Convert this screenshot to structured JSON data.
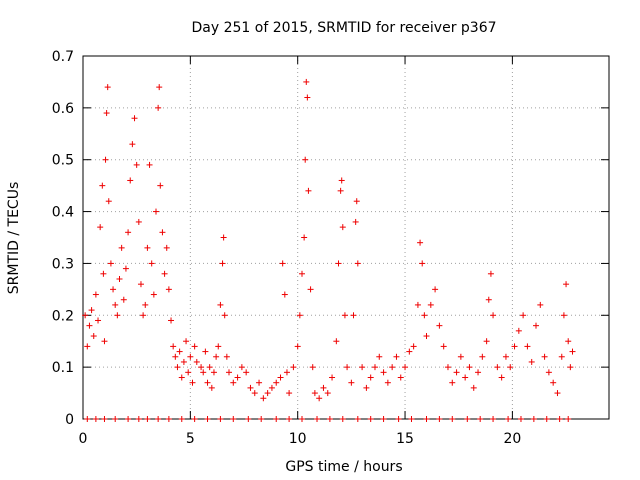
{
  "chart_data": {
    "type": "scatter",
    "title": "Day 251 of 2015, SRMTID for receiver p367",
    "xlabel": "GPS time / hours",
    "ylabel": "SRMTID / TECUs",
    "xlim": [
      0,
      24.5
    ],
    "ylim": [
      0,
      0.7
    ],
    "xticks": [
      0,
      5,
      10,
      15,
      20
    ],
    "yticks": [
      0,
      0.1,
      0.2,
      0.3,
      0.4,
      0.5,
      0.6,
      0.7
    ],
    "xtick_labels": [
      "0",
      "5",
      "10",
      "15",
      "20"
    ],
    "ytick_labels": [
      "0",
      "0.1",
      "0.2",
      "0.3",
      "0.4",
      "0.5",
      "0.6",
      "0.7"
    ],
    "grid": true,
    "marker": "plus",
    "series": [
      {
        "name": "SRMTID",
        "color": "#ee0000",
        "points": [
          [
            0.1,
            0.2
          ],
          [
            0.2,
            0.14
          ],
          [
            0.3,
            0.18
          ],
          [
            0.4,
            0.21
          ],
          [
            0.5,
            0.16
          ],
          [
            0.6,
            0.24
          ],
          [
            0.7,
            0.19
          ],
          [
            0.8,
            0.37
          ],
          [
            0.9,
            0.45
          ],
          [
            0.95,
            0.28
          ],
          [
            1.0,
            0.15
          ],
          [
            1.05,
            0.5
          ],
          [
            1.1,
            0.59
          ],
          [
            1.15,
            0.64
          ],
          [
            1.2,
            0.42
          ],
          [
            1.3,
            0.3
          ],
          [
            1.4,
            0.25
          ],
          [
            1.5,
            0.22
          ],
          [
            1.6,
            0.2
          ],
          [
            1.7,
            0.27
          ],
          [
            1.8,
            0.33
          ],
          [
            1.9,
            0.23
          ],
          [
            2.0,
            0.29
          ],
          [
            2.1,
            0.36
          ],
          [
            2.2,
            0.46
          ],
          [
            2.3,
            0.53
          ],
          [
            2.4,
            0.58
          ],
          [
            2.5,
            0.49
          ],
          [
            2.6,
            0.38
          ],
          [
            2.7,
            0.26
          ],
          [
            2.8,
            0.2
          ],
          [
            2.9,
            0.22
          ],
          [
            3.0,
            0.33
          ],
          [
            3.1,
            0.49
          ],
          [
            3.2,
            0.3
          ],
          [
            3.3,
            0.24
          ],
          [
            3.4,
            0.4
          ],
          [
            3.5,
            0.6
          ],
          [
            3.55,
            0.64
          ],
          [
            3.6,
            0.45
          ],
          [
            3.7,
            0.36
          ],
          [
            3.8,
            0.28
          ],
          [
            3.9,
            0.33
          ],
          [
            4.0,
            0.25
          ],
          [
            4.1,
            0.19
          ],
          [
            4.2,
            0.14
          ],
          [
            4.3,
            0.12
          ],
          [
            4.4,
            0.1
          ],
          [
            4.5,
            0.13
          ],
          [
            4.6,
            0.08
          ],
          [
            4.7,
            0.11
          ],
          [
            4.8,
            0.15
          ],
          [
            4.9,
            0.09
          ],
          [
            5.0,
            0.12
          ],
          [
            5.1,
            0.07
          ],
          [
            5.2,
            0.14
          ],
          [
            5.3,
            0.11
          ],
          [
            5.5,
            0.1
          ],
          [
            5.6,
            0.09
          ],
          [
            5.7,
            0.13
          ],
          [
            5.8,
            0.07
          ],
          [
            5.9,
            0.1
          ],
          [
            6.0,
            0.06
          ],
          [
            6.1,
            0.09
          ],
          [
            6.2,
            0.12
          ],
          [
            6.3,
            0.14
          ],
          [
            6.4,
            0.22
          ],
          [
            6.5,
            0.3
          ],
          [
            6.55,
            0.35
          ],
          [
            6.6,
            0.2
          ],
          [
            6.7,
            0.12
          ],
          [
            6.8,
            0.09
          ],
          [
            7.0,
            0.07
          ],
          [
            7.2,
            0.08
          ],
          [
            7.4,
            0.1
          ],
          [
            7.6,
            0.09
          ],
          [
            7.8,
            0.06
          ],
          [
            8.0,
            0.05
          ],
          [
            8.2,
            0.07
          ],
          [
            8.4,
            0.04
          ],
          [
            8.6,
            0.05
          ],
          [
            8.8,
            0.06
          ],
          [
            9.0,
            0.07
          ],
          [
            9.2,
            0.08
          ],
          [
            9.3,
            0.3
          ],
          [
            9.4,
            0.24
          ],
          [
            9.5,
            0.09
          ],
          [
            9.6,
            0.05
          ],
          [
            9.8,
            0.1
          ],
          [
            10.0,
            0.14
          ],
          [
            10.1,
            0.2
          ],
          [
            10.2,
            0.28
          ],
          [
            10.3,
            0.35
          ],
          [
            10.35,
            0.5
          ],
          [
            10.4,
            0.65
          ],
          [
            10.45,
            0.62
          ],
          [
            10.5,
            0.44
          ],
          [
            10.6,
            0.25
          ],
          [
            10.7,
            0.1
          ],
          [
            10.8,
            0.05
          ],
          [
            11.0,
            0.04
          ],
          [
            11.2,
            0.06
          ],
          [
            11.4,
            0.05
          ],
          [
            11.6,
            0.08
          ],
          [
            11.8,
            0.15
          ],
          [
            11.9,
            0.3
          ],
          [
            12.0,
            0.44
          ],
          [
            12.05,
            0.46
          ],
          [
            12.1,
            0.37
          ],
          [
            12.2,
            0.2
          ],
          [
            12.3,
            0.1
          ],
          [
            12.5,
            0.07
          ],
          [
            12.6,
            0.2
          ],
          [
            12.7,
            0.38
          ],
          [
            12.75,
            0.42
          ],
          [
            12.8,
            0.3
          ],
          [
            13.0,
            0.1
          ],
          [
            13.2,
            0.06
          ],
          [
            13.4,
            0.08
          ],
          [
            13.6,
            0.1
          ],
          [
            13.8,
            0.12
          ],
          [
            14.0,
            0.09
          ],
          [
            14.2,
            0.07
          ],
          [
            14.4,
            0.1
          ],
          [
            14.6,
            0.12
          ],
          [
            14.8,
            0.08
          ],
          [
            15.0,
            0.1
          ],
          [
            15.2,
            0.13
          ],
          [
            15.4,
            0.14
          ],
          [
            15.6,
            0.22
          ],
          [
            15.7,
            0.34
          ],
          [
            15.8,
            0.3
          ],
          [
            15.9,
            0.2
          ],
          [
            16.0,
            0.16
          ],
          [
            16.2,
            0.22
          ],
          [
            16.4,
            0.25
          ],
          [
            16.6,
            0.18
          ],
          [
            16.8,
            0.14
          ],
          [
            17.0,
            0.1
          ],
          [
            17.2,
            0.07
          ],
          [
            17.4,
            0.09
          ],
          [
            17.6,
            0.12
          ],
          [
            17.8,
            0.08
          ],
          [
            18.0,
            0.1
          ],
          [
            18.2,
            0.06
          ],
          [
            18.4,
            0.09
          ],
          [
            18.6,
            0.12
          ],
          [
            18.8,
            0.15
          ],
          [
            18.9,
            0.23
          ],
          [
            19.0,
            0.28
          ],
          [
            19.1,
            0.2
          ],
          [
            19.3,
            0.1
          ],
          [
            19.5,
            0.08
          ],
          [
            19.7,
            0.12
          ],
          [
            19.9,
            0.1
          ],
          [
            20.1,
            0.14
          ],
          [
            20.3,
            0.17
          ],
          [
            20.5,
            0.2
          ],
          [
            20.7,
            0.14
          ],
          [
            20.9,
            0.11
          ],
          [
            21.1,
            0.18
          ],
          [
            21.3,
            0.22
          ],
          [
            21.5,
            0.12
          ],
          [
            21.7,
            0.09
          ],
          [
            21.9,
            0.07
          ],
          [
            22.1,
            0.05
          ],
          [
            22.3,
            0.12
          ],
          [
            22.4,
            0.2
          ],
          [
            22.5,
            0.26
          ],
          [
            22.6,
            0.15
          ],
          [
            22.7,
            0.1
          ],
          [
            22.8,
            0.13
          ],
          [
            0.2,
            0
          ],
          [
            0.6,
            0
          ],
          [
            1.0,
            0
          ],
          [
            1.5,
            0
          ],
          [
            2.1,
            0
          ],
          [
            2.6,
            0
          ],
          [
            3.0,
            0
          ],
          [
            3.5,
            0
          ],
          [
            4.0,
            0
          ],
          [
            4.6,
            0
          ],
          [
            5.2,
            0
          ],
          [
            5.8,
            0
          ],
          [
            6.4,
            0
          ],
          [
            7.0,
            0
          ],
          [
            7.7,
            0
          ],
          [
            8.3,
            0
          ],
          [
            9.0,
            0
          ],
          [
            9.6,
            0
          ],
          [
            10.2,
            0
          ],
          [
            10.9,
            0
          ],
          [
            11.5,
            0
          ],
          [
            12.1,
            0
          ],
          [
            12.8,
            0
          ],
          [
            13.4,
            0
          ],
          [
            14.0,
            0
          ],
          [
            14.7,
            0
          ],
          [
            15.3,
            0
          ],
          [
            16.0,
            0
          ],
          [
            16.6,
            0
          ],
          [
            17.2,
            0
          ],
          [
            17.9,
            0
          ],
          [
            18.5,
            0
          ],
          [
            19.1,
            0
          ],
          [
            19.8,
            0
          ],
          [
            20.4,
            0
          ],
          [
            21.0,
            0
          ],
          [
            21.6,
            0
          ],
          [
            22.2,
            0
          ],
          [
            22.6,
            0
          ]
        ]
      }
    ]
  }
}
